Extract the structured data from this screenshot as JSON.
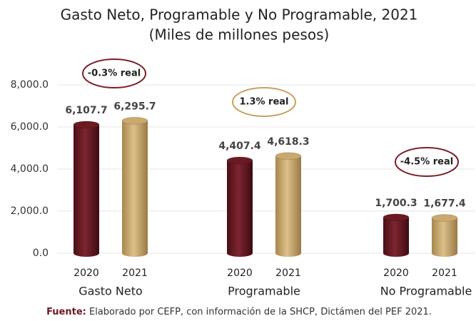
{
  "chart_data": {
    "type": "bar",
    "title": "Gasto Neto, Programable y No Programable, 2021",
    "subtitle": "(Miles de millones pesos)",
    "categories": [
      "Gasto Neto",
      "Programable",
      "No Programable"
    ],
    "series": [
      {
        "name": "2020",
        "color": "#6b1a22",
        "values": [
          6107.7,
          4407.4,
          1700.3
        ],
        "value_labels": [
          "6,107.7",
          "4,407.4",
          "1,700.3"
        ]
      },
      {
        "name": "2021",
        "color": "#c9a96e",
        "values": [
          6295.7,
          4618.3,
          1677.4
        ],
        "value_labels": [
          "6,295.7",
          "4,618.3",
          "1,677.4"
        ]
      }
    ],
    "ylim": [
      0,
      8000
    ],
    "yticks": [
      {
        "value": 0,
        "label": "0.0"
      },
      {
        "value": 2000,
        "label": "2,000.0"
      },
      {
        "value": 4000,
        "label": "4,000.0"
      },
      {
        "value": 6000,
        "label": "6,000.0"
      },
      {
        "value": 8000,
        "label": "8,000.0"
      }
    ],
    "grid": true,
    "annotations": [
      "-0.3% real",
      "1.3% real",
      "-4.5% real"
    ],
    "source": {
      "label": "Fuente:",
      "text": "Elaborado por CEFP, con información de la SHCP, Dictámen del PEF 2021."
    }
  }
}
